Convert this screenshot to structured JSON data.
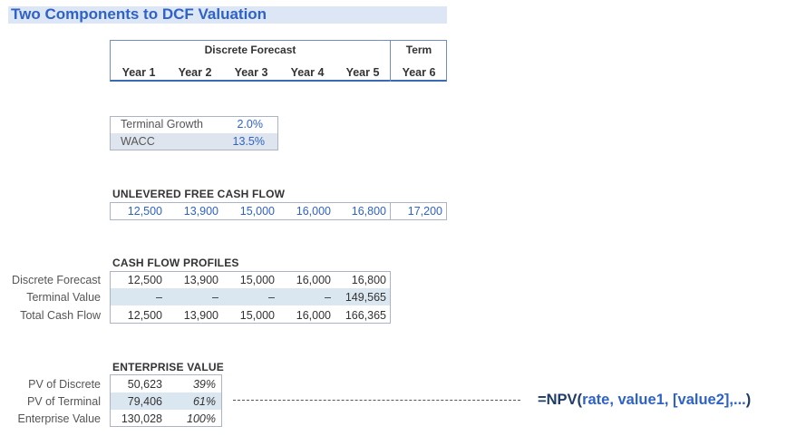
{
  "title": "Two Components to DCF Valuation",
  "header": {
    "discrete_label": "Discrete Forecast",
    "term_label": "Term",
    "years": [
      "Year 1",
      "Year 2",
      "Year 3",
      "Year 4",
      "Year 5",
      "Year 6"
    ]
  },
  "assumptions": {
    "rows": [
      {
        "label": "Terminal Growth",
        "value": "2.0%"
      },
      {
        "label": "WACC",
        "value": "13.5%"
      }
    ]
  },
  "ufcf": {
    "title": "UNLEVERED FREE CASH FLOW",
    "values": [
      "12,500",
      "13,900",
      "15,000",
      "16,000",
      "16,800",
      "17,200"
    ]
  },
  "profiles": {
    "title": "CASH FLOW PROFILES",
    "rows": [
      {
        "label": "Discrete Forecast",
        "values": [
          "12,500",
          "13,900",
          "15,000",
          "16,000",
          "16,800"
        ]
      },
      {
        "label": "Terminal Value",
        "values": [
          "–",
          "–",
          "–",
          "–",
          "149,565"
        ]
      },
      {
        "label": "Total Cash Flow",
        "values": [
          "12,500",
          "13,900",
          "15,000",
          "16,000",
          "166,365"
        ]
      }
    ]
  },
  "enterprise": {
    "title": "ENTERPRISE VALUE",
    "rows": [
      {
        "label": "PV of Discrete",
        "value": "50,623",
        "pct": "39%"
      },
      {
        "label": "PV of Terminal",
        "value": "79,406",
        "pct": "61%"
      },
      {
        "label": "Enterprise Value",
        "value": "130,028",
        "pct": "100%"
      }
    ]
  },
  "formula": {
    "part1": "=NPV(",
    "part2": "rate, value1, [value2],...",
    "part3": ")"
  },
  "colors": {
    "accent_blue": "#2e62c7",
    "title_band": "#dce6f4",
    "shade": "#dbe7f0",
    "formula_dark": "#1f3c66"
  }
}
